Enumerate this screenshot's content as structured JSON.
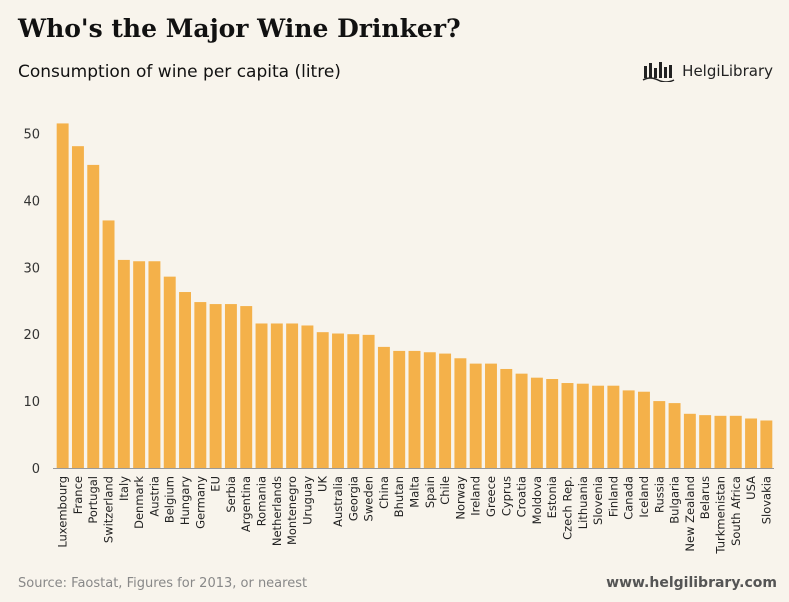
{
  "header": {
    "title": "Who's the Major Wine Drinker?",
    "subtitle": "Consumption of wine per capita (litre)"
  },
  "logo": {
    "text": "HelgiLibrary",
    "icon": "helgi-library-logo-icon"
  },
  "footer": {
    "source": "Source: Faostat, Figures for 2013, or nearest",
    "website": "www.helgilibrary.com"
  },
  "colors": {
    "bar": "#f4b14a",
    "background": "#f8f4ec",
    "axis": "#999999"
  },
  "chart_data": {
    "type": "bar",
    "title": "Who's the Major Wine Drinker?",
    "subtitle": "Consumption of wine per capita (litre)",
    "xlabel": "",
    "ylabel": "",
    "ylim": [
      0,
      55
    ],
    "yticks": [
      0,
      10,
      20,
      30,
      40,
      50
    ],
    "grid": false,
    "categories": [
      "Luxembourg",
      "France",
      "Portugal",
      "Switzerland",
      "Italy",
      "Denmark",
      "Austria",
      "Belgium",
      "Hungary",
      "Germany",
      "EU",
      "Serbia",
      "Argentina",
      "Romania",
      "Netherlands",
      "Montenegro",
      "Uruguay",
      "UK",
      "Australia",
      "Georgia",
      "Sweden",
      "China",
      "Bhutan",
      "Malta",
      "Spain",
      "Chile",
      "Norway",
      "Ireland",
      "Greece",
      "Cyprus",
      "Croatia",
      "Moldova",
      "Estonia",
      "Czech Rep.",
      "Lithuania",
      "Slovenia",
      "Finland",
      "Canada",
      "Iceland",
      "Russia",
      "Bulgaria",
      "New Zealand",
      "Belarus",
      "Turkmenistan",
      "South Africa",
      "USA",
      "Slovakia"
    ],
    "values": [
      51.5,
      48.1,
      45.3,
      37.0,
      31.1,
      30.9,
      30.9,
      28.6,
      26.3,
      24.8,
      24.5,
      24.5,
      24.2,
      21.6,
      21.6,
      21.6,
      21.3,
      20.3,
      20.1,
      20.0,
      19.9,
      18.1,
      17.5,
      17.5,
      17.3,
      17.1,
      16.4,
      15.6,
      15.6,
      14.8,
      14.1,
      13.5,
      13.3,
      12.7,
      12.6,
      12.3,
      12.3,
      11.6,
      11.4,
      10.0,
      9.7,
      8.1,
      7.9,
      7.8,
      7.8,
      7.4,
      7.1
    ]
  }
}
